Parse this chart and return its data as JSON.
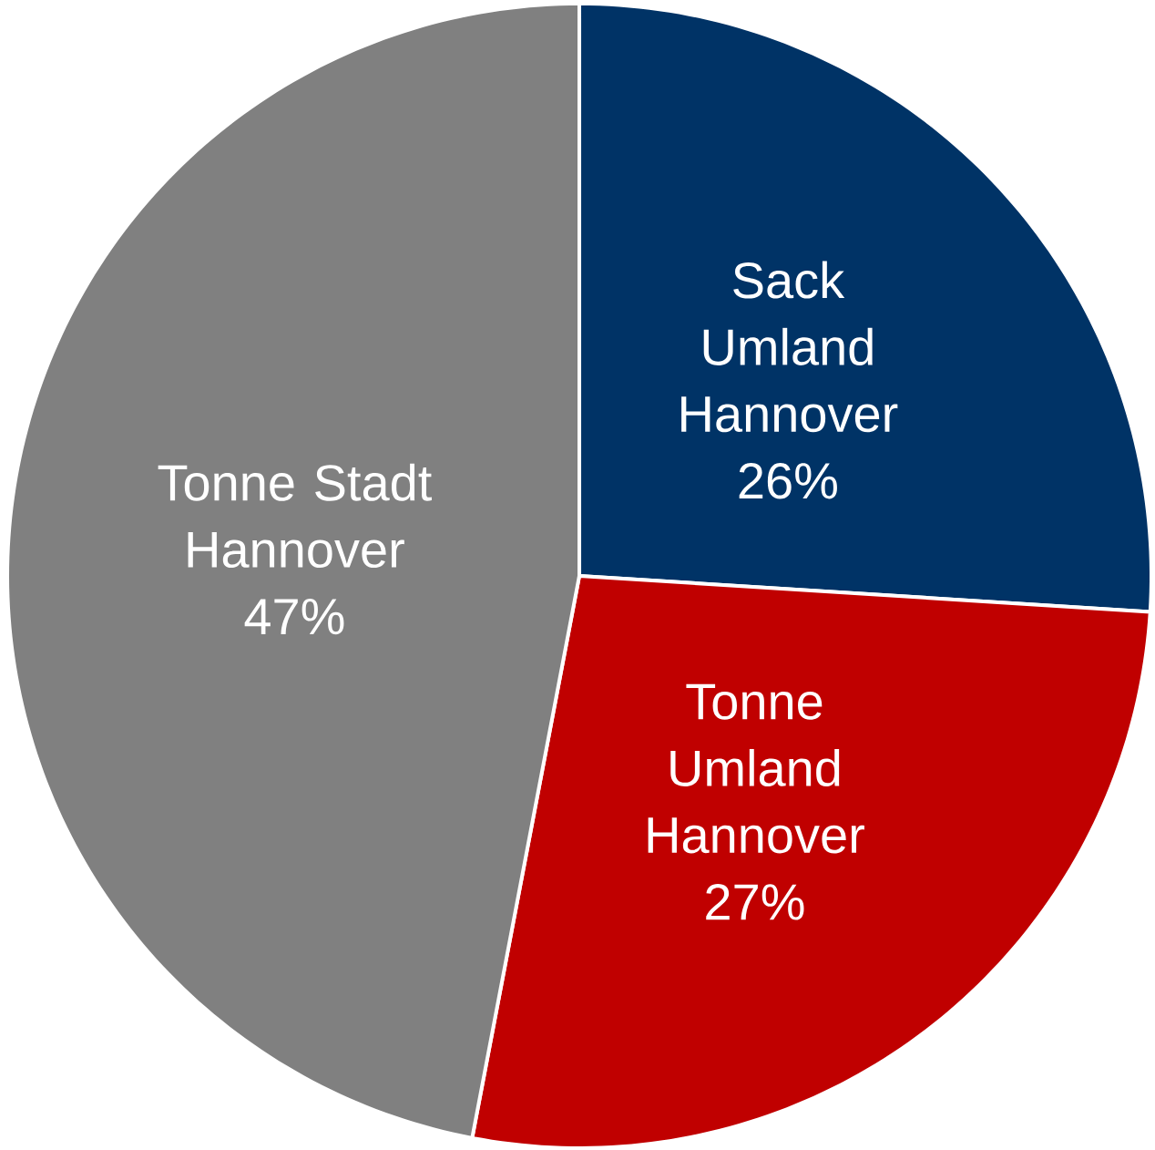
{
  "chart_data": {
    "type": "pie",
    "categories": [
      "Sack Umland Hannover",
      "Tonne Umland Hannover",
      "Tonne Stadt Hannover"
    ],
    "values": [
      26,
      27,
      47
    ],
    "colors": [
      "#003366",
      "#c00000",
      "#808080"
    ],
    "value_labels": [
      "26%",
      "27%",
      "47%"
    ]
  }
}
